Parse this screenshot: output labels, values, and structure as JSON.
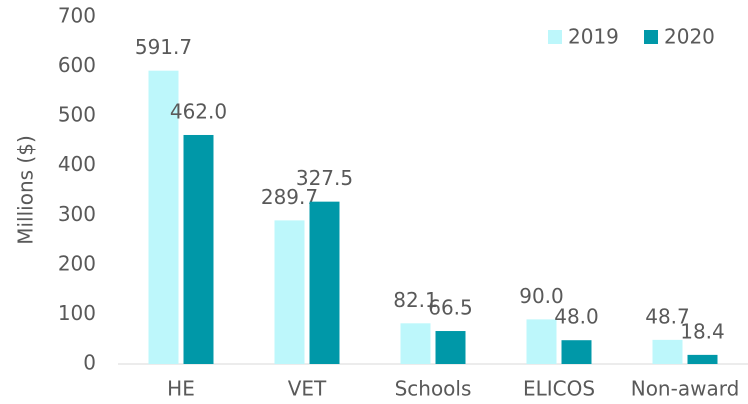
{
  "chart_data": {
    "type": "bar",
    "y_label": "Millions ($)",
    "categories": [
      "HE",
      "VET",
      "Schools",
      "ELICOS",
      "Non-award"
    ],
    "series": [
      {
        "name": "2019",
        "color": "#bdf7fb",
        "values": [
          591.7,
          289.7,
          82.1,
          90.0,
          48.7
        ],
        "value_labels": [
          "591.7",
          "289.7",
          "82.1",
          "90.0",
          "48.7"
        ]
      },
      {
        "name": "2020",
        "color": "#0098a8",
        "values": [
          462.0,
          327.5,
          66.5,
          48.0,
          18.4
        ],
        "value_labels": [
          "462.0",
          "327.5",
          "66.5",
          "48.0",
          "18.4"
        ]
      }
    ],
    "ylim": [
      0,
      700
    ],
    "yticks": [
      0,
      100,
      200,
      300,
      400,
      500,
      600,
      700
    ],
    "legend": "top-right",
    "grid": false
  }
}
